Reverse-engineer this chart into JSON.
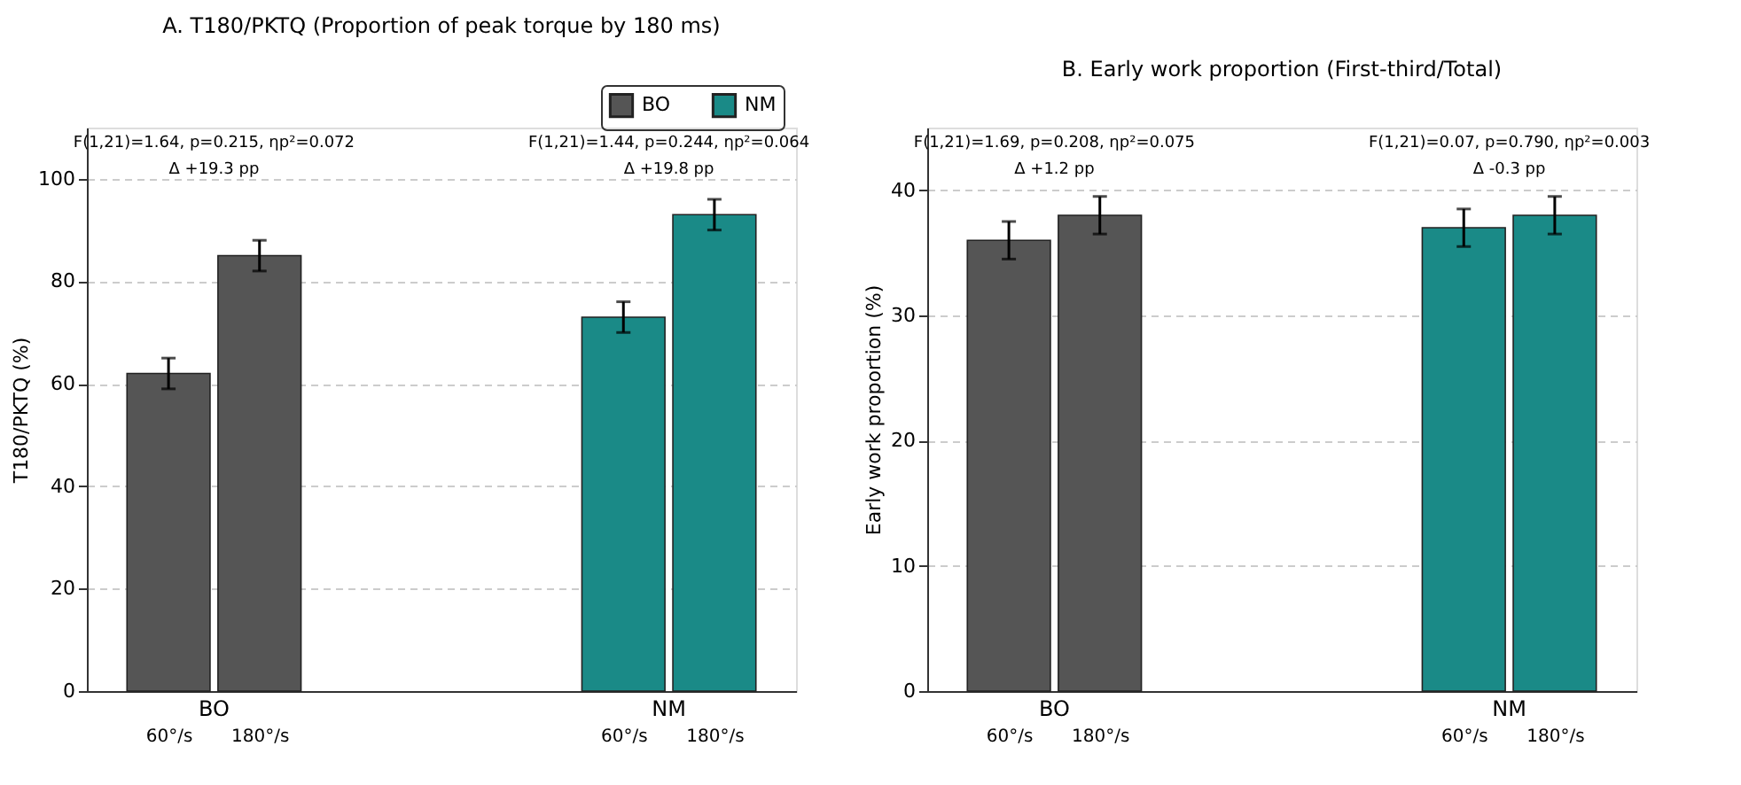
{
  "chart_data": [
    {
      "type": "bar",
      "title": "A. T180/PKTQ (Proportion of peak torque by 180 ms)",
      "ylabel": "T180/PKTQ (%)",
      "categories": [
        "60°/s",
        "180°/s",
        null,
        null,
        null,
        "60°/s",
        "180°/s"
      ],
      "series": [
        {
          "name": "BO",
          "color": "#555555",
          "values": [
            62,
            85,
            null,
            null,
            null,
            null,
            null
          ],
          "errors": [
            3,
            3,
            null,
            null,
            null,
            null,
            null
          ]
        },
        {
          "name": "NM",
          "color": "#1a8a87",
          "values": [
            null,
            null,
            null,
            null,
            null,
            73,
            93
          ],
          "errors": [
            null,
            null,
            null,
            null,
            null,
            3,
            3
          ]
        }
      ],
      "ylim": [
        0,
        110
      ],
      "yticks": [
        0,
        20,
        40,
        60,
        80,
        100
      ],
      "grid": "y",
      "legend": "top right",
      "annotations": [
        "F(1,21)=1.64, p=0.215, ηp²=0.072",
        "Δ +19.3 pp",
        "F(1,21)=1.44, p=0.244, ηp²=0.064",
        "Δ +19.8 pp"
      ]
    },
    {
      "type": "bar",
      "title": "B. Early work proportion (First-third/Total)",
      "ylabel": "Early work proportion (%)",
      "categories": [
        "60°/s",
        "180°/s",
        null,
        null,
        null,
        "60°/s",
        "180°/s"
      ],
      "series": [
        {
          "name": "BO",
          "color": "#555555",
          "values": [
            36,
            38,
            null,
            null,
            null,
            null,
            null
          ],
          "errors": [
            1.5,
            1.5,
            null,
            null,
            null,
            null,
            null
          ]
        },
        {
          "name": "NM",
          "color": "#1a8a87",
          "values": [
            null,
            null,
            null,
            null,
            null,
            37,
            38
          ],
          "errors": [
            null,
            null,
            null,
            null,
            null,
            1.5,
            1.5
          ]
        }
      ],
      "ylim": [
        0,
        45
      ],
      "yticks": [
        0,
        10,
        20,
        30,
        40
      ],
      "grid": "y",
      "annotations": [
        "F(1,21)=1.69, p=0.208, ηp²=0.075",
        "Δ +1.2 pp",
        "F(1,21)=0.07, p=0.790, ηp²=0.003",
        "Δ -0.3 pp"
      ]
    }
  ]
}
